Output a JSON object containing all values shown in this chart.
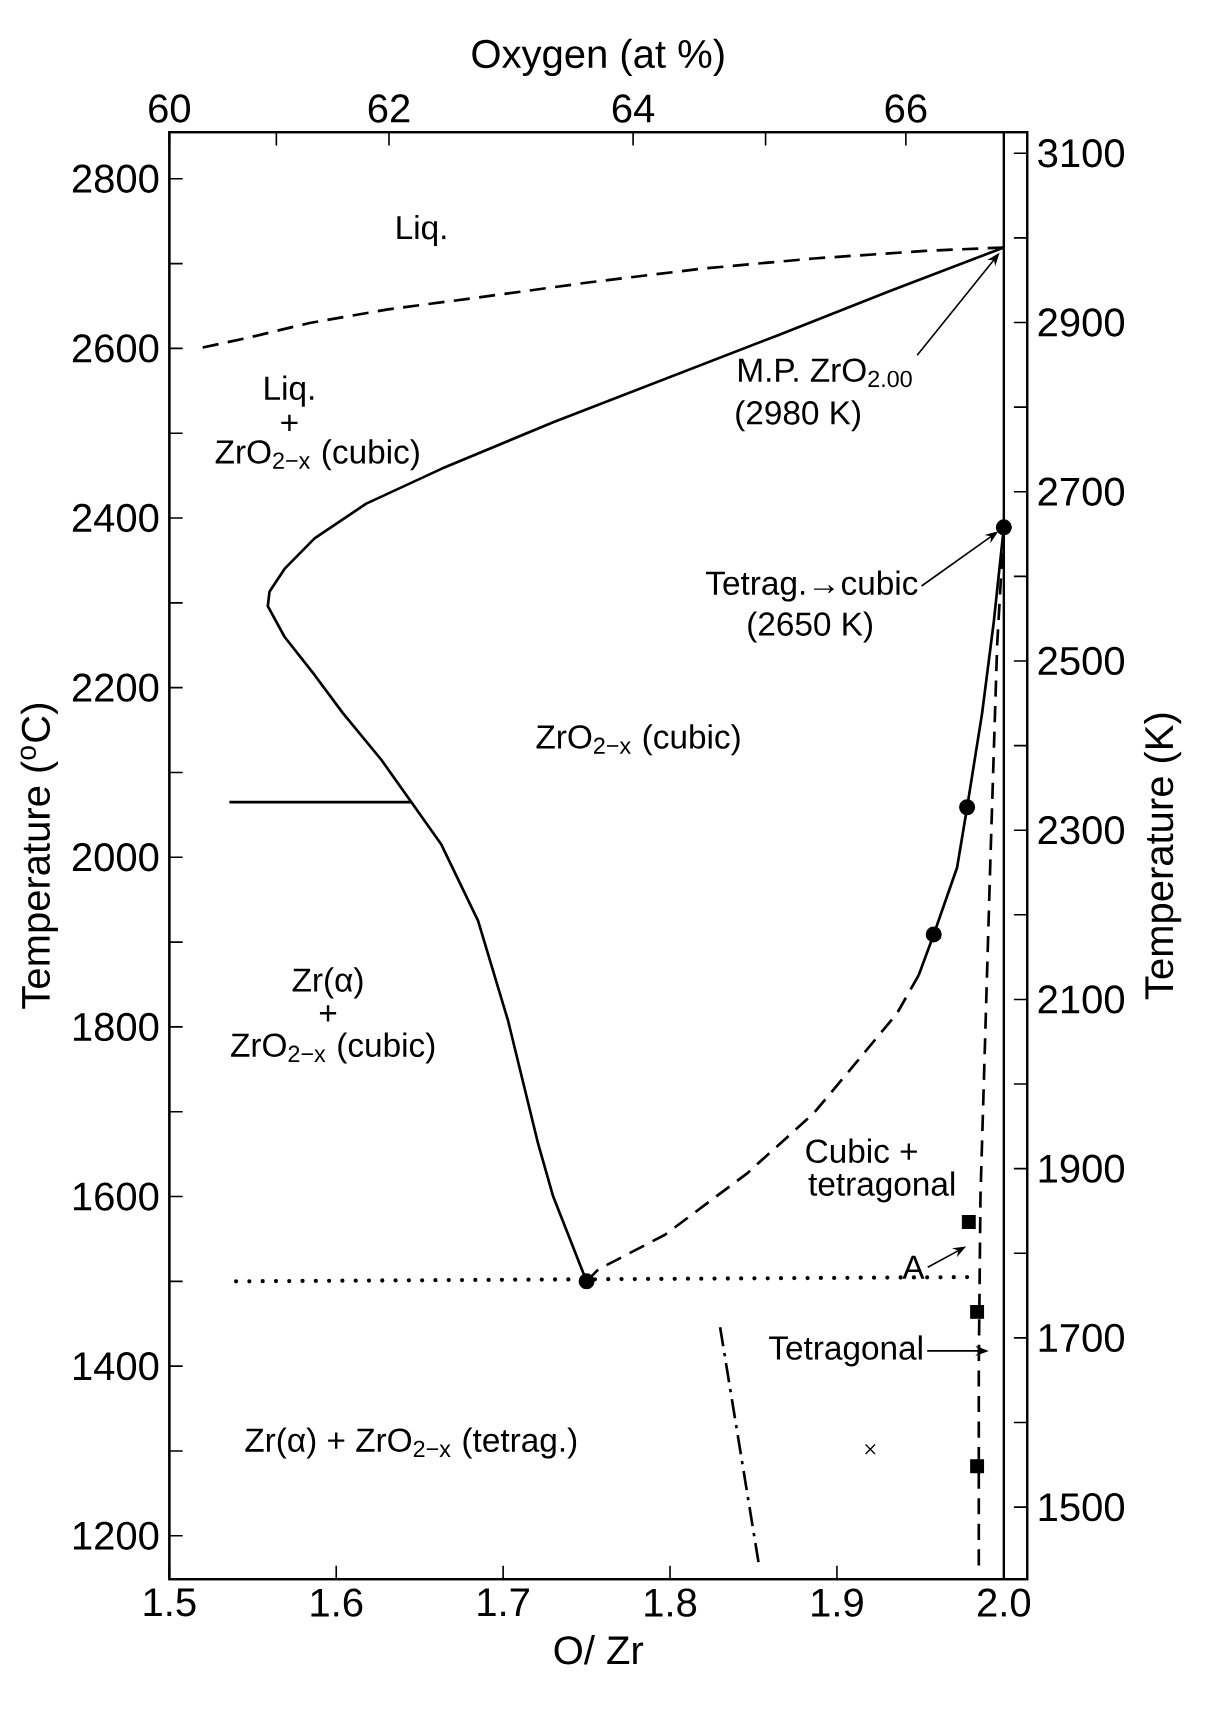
{
  "chart_data": {
    "type": "line",
    "xlabel": "O/ Zr",
    "ylabel": "Temperature ($^{o}$C)",
    "y2label": "Temperature (K)",
    "x2label": "Oxygen (at %)",
    "xlim": [
      1.5,
      2.014
    ],
    "ylim": [
      1149,
      2855
    ],
    "y2lim": [
      1415,
      3125
    ],
    "x2lim": [
      60,
      66.82
    ],
    "xticks": [
      1.5,
      1.6,
      1.7,
      1.8,
      1.9,
      {
        "value": 2.0,
        "label": "2.0"
      }
    ],
    "yticks": [
      1200,
      {
        "value": 1300,
        "label": null
      },
      1400,
      {
        "value": 1500,
        "label": null
      },
      1600,
      {
        "value": 1700,
        "label": null
      },
      1800,
      {
        "value": 1900,
        "label": null
      },
      2000,
      {
        "value": 2100,
        "label": null
      },
      2200,
      {
        "value": 2300,
        "label": null
      },
      2400,
      {
        "value": 2500,
        "label": null
      },
      2600,
      {
        "value": 2700,
        "label": null
      },
      2800
    ],
    "y2ticks": [
      1500,
      {
        "value": 1600,
        "label": null
      },
      1700,
      {
        "value": 1800,
        "label": null
      },
      1900,
      {
        "value": 2000,
        "label": null
      },
      2100,
      {
        "value": 2200,
        "label": null
      },
      2300,
      {
        "value": 2400,
        "label": null
      },
      2500,
      {
        "value": 2600,
        "label": null
      },
      2700,
      {
        "value": 2800,
        "label": null
      },
      2900,
      {
        "value": 3000,
        "label": null
      },
      3100
    ],
    "x2ticks": [
      60,
      {
        "value": 61,
        "label": null
      },
      62,
      64,
      {
        "value": 65,
        "label": null
      },
      66
    ],
    "ref_lines": [
      {
        "axis": "x",
        "value": 2.0,
        "color": "#000000",
        "line_style": "solid"
      }
    ],
    "series": [
      {
        "line_style": "dashed",
        "color": "#000000",
        "x": [
          1.52,
          1.546,
          1.584,
          1.631,
          1.685,
          1.752,
          1.819,
          1.886,
          1.953,
          2.0
        ],
        "values": [
          2601,
          2612,
          2630,
          2646,
          2660,
          2678,
          2694,
          2706,
          2715,
          2719
        ]
      },
      {
        "line_style": "solid",
        "color": "#000000",
        "x": [
          2.0,
          1.931,
          1.864,
          1.797,
          1.73,
          1.663,
          1.618,
          1.587,
          1.569,
          1.56,
          1.559,
          1.569,
          1.587,
          1.604,
          1.627,
          1.645,
          1.663,
          1.685,
          1.703,
          1.721,
          1.73,
          1.75
        ],
        "values": [
          2719,
          2667,
          2615,
          2564,
          2513,
          2458,
          2417,
          2376,
          2340,
          2313,
          2296,
          2260,
          2215,
          2170,
          2115,
          2065,
          2015,
          1925,
          1807,
          1662,
          1600,
          1500
        ]
      },
      {
        "line_style": "solid",
        "color": "#000000",
        "x": [
          1.536,
          1.645
        ],
        "values": [
          2065,
          2065
        ]
      },
      {
        "line_style": "dotted",
        "color": "#000000",
        "x": [
          1.54,
          1.978
        ],
        "values": [
          1500,
          1505
        ]
      },
      {
        "line_style": "dashed",
        "color": "#000000",
        "x": [
          1.75,
          1.757,
          1.797,
          1.846,
          1.886,
          1.909,
          1.936,
          1.949
        ],
        "values": [
          1500,
          1514,
          1555,
          1627,
          1698,
          1752,
          1816,
          1861
        ]
      },
      {
        "line_style": "solid",
        "color": "#000000",
        "x": [
          1.949,
          1.958,
          1.972,
          1.978,
          1.987,
          1.994,
          2.0
        ],
        "values": [
          1861,
          1909,
          1988,
          2059,
          2170,
          2278,
          2389
        ]
      },
      {
        "line_style": "dashed",
        "color": "#000000",
        "x": [
          2.0,
          1.996,
          1.992,
          1.989,
          1.986,
          1.985,
          1.985
        ],
        "values": [
          2389,
          2250,
          2000,
          1800,
          1600,
          1400,
          1165
        ]
      },
      {
        "line_style": "dashdot",
        "color": "#000000",
        "x": [
          1.83,
          1.853
        ],
        "values": [
          1446,
          1169
        ]
      },
      {
        "type": "scatter",
        "marker": "circle",
        "color": "#000000",
        "x": [
          1.958,
          1.978,
          2.0
        ],
        "values": [
          1909,
          2059,
          2389
        ]
      },
      {
        "type": "scatter",
        "marker": "circle",
        "color": "#000000",
        "x": [
          1.75
        ],
        "values": [
          1500
        ]
      },
      {
        "type": "scatter",
        "marker": "square",
        "color": "#000000",
        "x": [
          1.984,
          1.984
        ],
        "values": [
          1464,
          1282
        ]
      },
      {
        "type": "scatter",
        "marker": "square",
        "color": "#000000",
        "x": [
          1.979
        ],
        "values": [
          1570
        ]
      },
      {
        "type": "scatter",
        "marker": "cross",
        "color": "#000000",
        "x": [
          1.92
        ],
        "values": [
          1302
        ]
      }
    ],
    "annotations": [
      "Liq.",
      "Liq.",
      "+",
      "ZrO$_{2−x}$ (cubic)",
      {
        "text": "M.P. ZrO$_{2.00}$",
        "x": 2.0,
        "y": 2719
      },
      "(2980 K)",
      {
        "text": "Tetrag.→cubic",
        "x": 2.0,
        "y": 2389
      },
      "(2650 K)",
      "ZrO$_{2−x}$ (cubic)",
      "Zr(α)",
      "+",
      "ZrO$_{2−x}$ (cubic)",
      "Cubic +",
      "tetragonal",
      {
        "text": "A",
        "x": 1.981,
        "y": 1545
      },
      {
        "text": "Tetragonal",
        "x": 1.995,
        "y": 1418
      },
      "Zr(α) + ZrO$_{2−x}$ (tetrag.)"
    ]
  }
}
